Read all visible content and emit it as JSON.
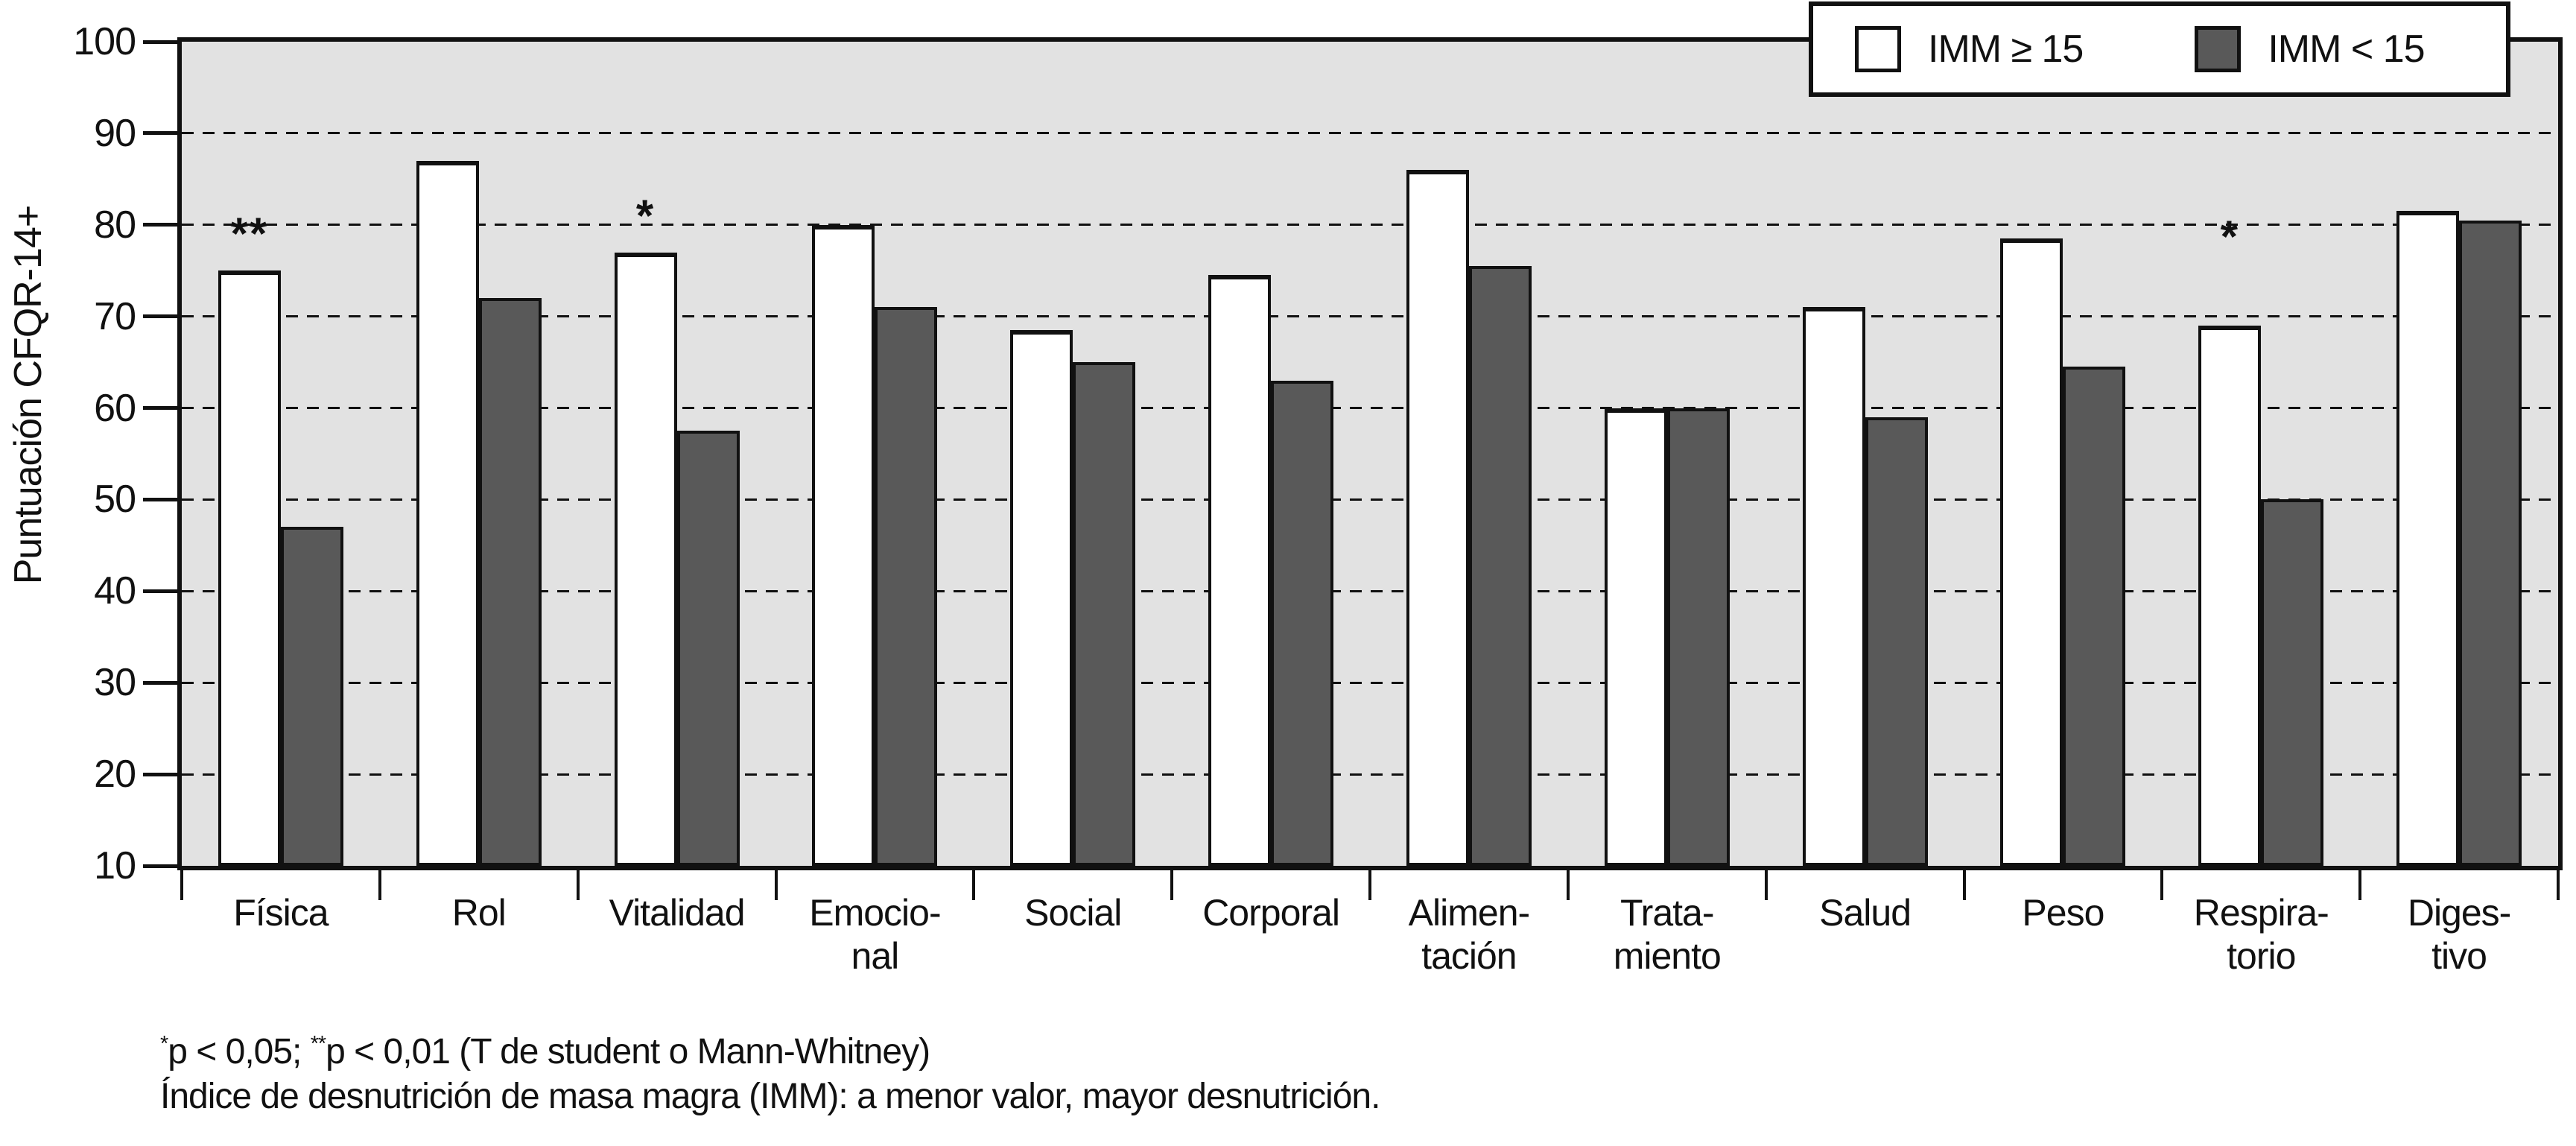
{
  "chart_data": {
    "type": "bar",
    "title": "",
    "ylabel": "Puntuación CFQR-14+",
    "xlabel": "",
    "ylim": [
      10,
      100
    ],
    "yticks": [
      100,
      90,
      80,
      70,
      60,
      50,
      40,
      30,
      20,
      10
    ],
    "grid": "horizontal-dashed",
    "legend_position": "top-right",
    "categories": [
      {
        "lines": [
          "Física"
        ],
        "sig": "**",
        "sig_raise": 15
      },
      {
        "lines": [
          "Rol"
        ],
        "sig": "",
        "sig_raise": 0
      },
      {
        "lines": [
          "Vitalidad"
        ],
        "sig": "*",
        "sig_raise": 15
      },
      {
        "lines": [
          "Emocio-",
          "nal"
        ],
        "sig": "",
        "sig_raise": 0
      },
      {
        "lines": [
          "Social"
        ],
        "sig": "",
        "sig_raise": 0
      },
      {
        "lines": [
          "Corporal"
        ],
        "sig": "",
        "sig_raise": 0
      },
      {
        "lines": [
          "Alimen-",
          "tación"
        ],
        "sig": "",
        "sig_raise": 0
      },
      {
        "lines": [
          "Trata-",
          "miento"
        ],
        "sig": "",
        "sig_raise": 0
      },
      {
        "lines": [
          "Salud"
        ],
        "sig": "",
        "sig_raise": 0
      },
      {
        "lines": [
          "Peso"
        ],
        "sig": "",
        "sig_raise": 0
      },
      {
        "lines": [
          "Respira-",
          "torio"
        ],
        "sig": "*",
        "sig_raise": 85
      },
      {
        "lines": [
          "Diges-",
          "tivo"
        ],
        "sig": "",
        "sig_raise": 0
      }
    ],
    "series": [
      {
        "name": "IMM ≥ 15",
        "color": "#ffffff",
        "values": [
          75,
          87,
          77,
          80,
          68.5,
          74.5,
          86,
          60,
          71,
          78.5,
          69,
          81.5
        ]
      },
      {
        "name": "IMM < 15",
        "color": "#595959",
        "values": [
          47,
          72,
          57.5,
          71,
          65,
          63,
          75.5,
          60,
          59,
          64.5,
          50,
          80.5
        ]
      }
    ],
    "colors": {
      "plot_bg": "#e2e2e2",
      "line": "#111111",
      "bar_light": "#ffffff",
      "bar_dark": "#595959"
    }
  },
  "footnotes": {
    "line1_sup1": "*",
    "line1_part1": "p < 0,05; ",
    "line1_sup2": "**",
    "line1_part2": "p < 0,01 (T de student o Mann-Whitney)",
    "line2": "Índice de desnutrición de masa magra (IMM): a menor valor, mayor desnutrición."
  }
}
